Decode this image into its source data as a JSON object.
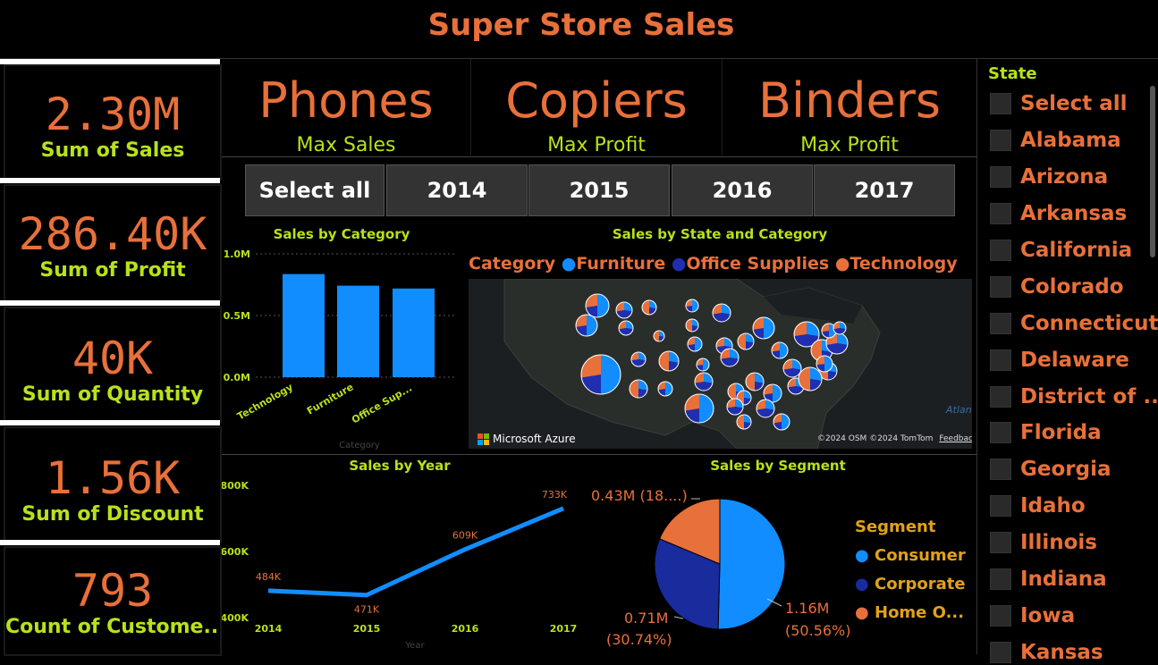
{
  "header": {
    "title": "Super Store Sales"
  },
  "kpis": [
    {
      "value": "2.30M",
      "label": "Sum of Sales"
    },
    {
      "value": "286.40K",
      "label": "Sum of Profit"
    },
    {
      "value": "40K",
      "label": "Sum of Quantity"
    },
    {
      "value": "1.56K",
      "label": "Sum of Discount"
    },
    {
      "value": "793",
      "label": "Count of Custome..."
    }
  ],
  "cards": [
    {
      "value": "Phones",
      "label": "Max Sales"
    },
    {
      "value": "Copiers",
      "label": "Max Profit"
    },
    {
      "value": "Binders",
      "label": "Max Profit"
    }
  ],
  "year_slicer": {
    "options": [
      "Select all",
      "2014",
      "2015",
      "2016",
      "2017"
    ]
  },
  "sales_by_category": {
    "title": "Sales by Category",
    "xlabel": "Category",
    "yticks": [
      "1.0M",
      "0.5M",
      "0.0M"
    ],
    "colors": {
      "bar": "#118dff"
    }
  },
  "sales_by_state": {
    "title": "Sales by State and Category",
    "legend_title": "Category",
    "legend": [
      {
        "name": "Furniture",
        "color": "#118dff"
      },
      {
        "name": "Office Supplies",
        "color": "#1f2fb0"
      },
      {
        "name": "Technology",
        "color": "#e8703a"
      }
    ],
    "map_brand": "Microsoft Azure",
    "credits": "©2024 OSM  ©2024 TomTom",
    "feedback": "Feedback",
    "ocean_label": "Atlan"
  },
  "sales_by_year": {
    "title": "Sales by Year",
    "xlabel": "Year",
    "yticks": [
      "800K",
      "600K",
      "400K"
    ],
    "colors": {
      "line": "#118dff"
    }
  },
  "sales_by_segment": {
    "title": "Sales by Segment",
    "legend_title": "Segment",
    "legend": [
      {
        "name": "Consumer",
        "color": "#118dff"
      },
      {
        "name": "Corporate",
        "color": "#1a2b9e"
      },
      {
        "name": "Home O...",
        "color": "#e8703a"
      }
    ],
    "label_home": "0.43M (18....)",
    "label_corporate_value": "0.71M",
    "label_corporate_pct": "(30.74%)",
    "label_consumer_value": "1.16M",
    "label_consumer_pct": "(50.56%)"
  },
  "state_slicer": {
    "title": "State",
    "items": [
      "Select all",
      "Alabama",
      "Arizona",
      "Arkansas",
      "California",
      "Colorado",
      "Connecticut",
      "Delaware",
      "District of ...",
      "Florida",
      "Georgia",
      "Idaho",
      "Illinois",
      "Indiana",
      "Iowa",
      "Kansas"
    ]
  },
  "chart_data": [
    {
      "type": "bar",
      "title": "Sales by Category",
      "categories": [
        "Technology",
        "Furniture",
        "Office Sup..."
      ],
      "values": [
        836000,
        742000,
        719000
      ],
      "xlabel": "Category",
      "ylim": [
        0,
        1000000
      ],
      "grid": true
    },
    {
      "type": "line",
      "title": "Sales by Year",
      "x": [
        "2014",
        "2015",
        "2016",
        "2017"
      ],
      "values": [
        484000,
        471000,
        609000,
        733000
      ],
      "data_labels": [
        "484K",
        "471K",
        "609K",
        "733K"
      ],
      "xlabel": "Year",
      "ylim": [
        400000,
        800000
      ]
    },
    {
      "type": "pie",
      "title": "Sales by Segment",
      "categories": [
        "Consumer",
        "Corporate",
        "Home Office"
      ],
      "values": [
        1.16,
        0.71,
        0.43
      ],
      "percentages": [
        50.56,
        30.74,
        18.7
      ],
      "legend": "right"
    }
  ]
}
